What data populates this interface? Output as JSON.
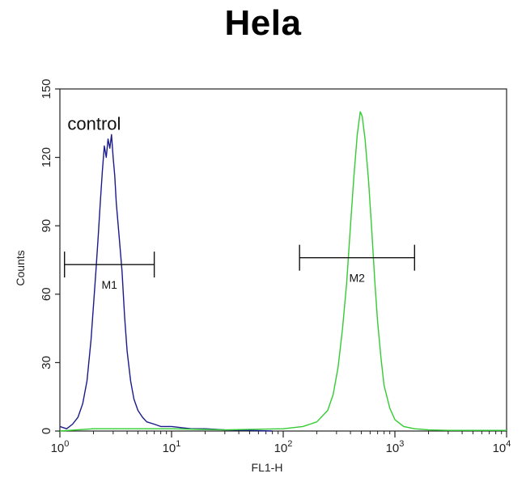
{
  "chart_data": {
    "type": "line",
    "title": "Hela",
    "xlabel": "FL1-H",
    "ylabel": "Counts",
    "xscale": "log",
    "xlim": [
      1,
      10000
    ],
    "ylim": [
      0,
      150
    ],
    "x_ticks": [
      {
        "base": "10",
        "exp": "0"
      },
      {
        "base": "10",
        "exp": "1"
      },
      {
        "base": "10",
        "exp": "2"
      },
      {
        "base": "10",
        "exp": "3"
      },
      {
        "base": "10",
        "exp": "4"
      }
    ],
    "y_ticks": [
      "0",
      "30",
      "60",
      "90",
      "120",
      "150"
    ],
    "grid": false,
    "annotations": [
      {
        "text": "control",
        "x": 1.25,
        "y": 135
      }
    ],
    "markers": [
      {
        "label": "M1",
        "x_start": 1.1,
        "x_end": 7.0,
        "y": 73
      },
      {
        "label": "M2",
        "x_start": 140,
        "x_end": 1500,
        "y": 76
      }
    ],
    "series": [
      {
        "color": "#1a1a8c",
        "points": [
          [
            1.0,
            2
          ],
          [
            1.15,
            1
          ],
          [
            1.3,
            3
          ],
          [
            1.45,
            6
          ],
          [
            1.6,
            12
          ],
          [
            1.75,
            22
          ],
          [
            1.9,
            40
          ],
          [
            2.0,
            55
          ],
          [
            2.1,
            70
          ],
          [
            2.2,
            85
          ],
          [
            2.3,
            100
          ],
          [
            2.4,
            114
          ],
          [
            2.5,
            125
          ],
          [
            2.6,
            120
          ],
          [
            2.7,
            128
          ],
          [
            2.8,
            124
          ],
          [
            2.9,
            130
          ],
          [
            3.0,
            120
          ],
          [
            3.1,
            112
          ],
          [
            3.2,
            100
          ],
          [
            3.4,
            85
          ],
          [
            3.6,
            70
          ],
          [
            3.8,
            50
          ],
          [
            4.0,
            35
          ],
          [
            4.3,
            22
          ],
          [
            4.6,
            14
          ],
          [
            5.0,
            9
          ],
          [
            5.5,
            6
          ],
          [
            6.0,
            4
          ],
          [
            7.0,
            3
          ],
          [
            8.0,
            2
          ],
          [
            10,
            2
          ],
          [
            15,
            1
          ],
          [
            20,
            1
          ],
          [
            30,
            0.5
          ],
          [
            50,
            0.3
          ],
          [
            80,
            0
          ]
        ]
      },
      {
        "color": "#33cc33",
        "points": [
          [
            1.0,
            0
          ],
          [
            2,
            1
          ],
          [
            5,
            1
          ],
          [
            10,
            1
          ],
          [
            30,
            0.5
          ],
          [
            100,
            1
          ],
          [
            150,
            2
          ],
          [
            200,
            4
          ],
          [
            250,
            9
          ],
          [
            280,
            16
          ],
          [
            310,
            28
          ],
          [
            340,
            45
          ],
          [
            370,
            65
          ],
          [
            400,
            90
          ],
          [
            430,
            112
          ],
          [
            460,
            130
          ],
          [
            490,
            140
          ],
          [
            510,
            138
          ],
          [
            540,
            128
          ],
          [
            580,
            110
          ],
          [
            620,
            88
          ],
          [
            660,
            66
          ],
          [
            700,
            48
          ],
          [
            750,
            32
          ],
          [
            800,
            20
          ],
          [
            900,
            10
          ],
          [
            1000,
            5
          ],
          [
            1200,
            2
          ],
          [
            1500,
            1
          ],
          [
            2000,
            0.5
          ],
          [
            3000,
            0.3
          ],
          [
            10000,
            0.3
          ]
        ]
      }
    ]
  }
}
